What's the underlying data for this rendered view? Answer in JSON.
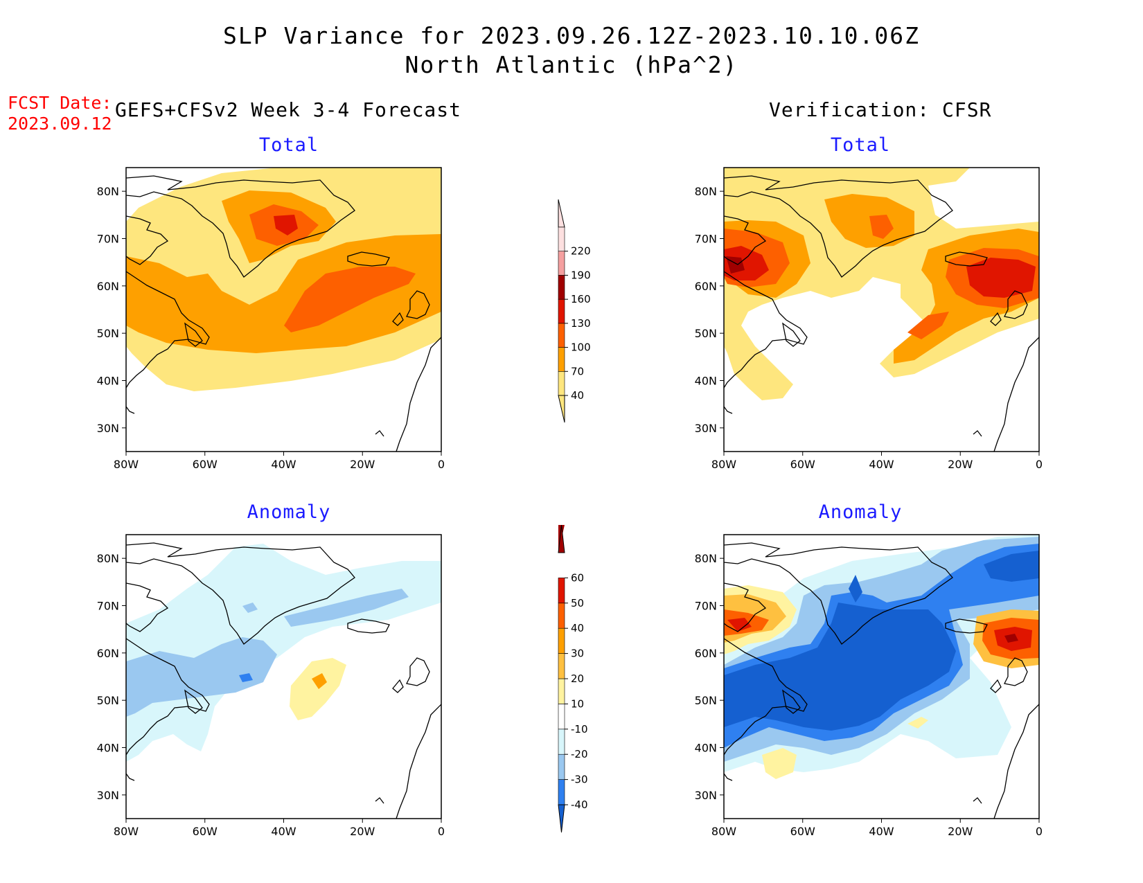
{
  "title": {
    "line1": "SLP Variance for 2023.09.26.12Z-2023.10.10.06Z",
    "line2": "North Atlantic (hPa^2)"
  },
  "forecast_date": {
    "label": "FCST Date:",
    "value": "2023.09.12"
  },
  "left_header": "GEFS+CFSv2 Week 3-4 Forecast",
  "right_header": "Verification: CFSR",
  "panels": {
    "fcst_total": {
      "subtitle": "Total"
    },
    "ver_total": {
      "subtitle": "Total"
    },
    "fcst_anom": {
      "subtitle": "Anomaly"
    },
    "ver_anom": {
      "subtitle": "Anomaly"
    }
  },
  "axes": {
    "lon_ticks": [
      "80W",
      "60W",
      "40W",
      "20W",
      "0"
    ],
    "lat_ticks": [
      "30N",
      "40N",
      "50N",
      "60N",
      "70N",
      "80N"
    ],
    "lon_range": [
      -80,
      0
    ],
    "lat_range": [
      25,
      85
    ]
  },
  "colorbars": {
    "total": {
      "labels": [
        "40",
        "70",
        "100",
        "130",
        "160",
        "190",
        "220"
      ],
      "colors": [
        "#fee67e",
        "#fea000",
        "#fd6000",
        "#e01500",
        "#a00000",
        "#f5a0a0",
        "#fde0e0"
      ]
    },
    "anomaly": {
      "labels": [
        "-40",
        "-30",
        "-20",
        "-10",
        "10",
        "20",
        "30",
        "40",
        "50",
        "60"
      ],
      "colors": [
        "#1560d0",
        "#2f80f0",
        "#9ac8f0",
        "#d8f6fb",
        "#ffffff",
        "#fff3a0",
        "#fec040",
        "#fea000",
        "#fd6000",
        "#e01500",
        "#a00000"
      ]
    }
  },
  "colors": {
    "land_outline": "#000000",
    "title_red": "#ff0000",
    "subtitle_blue": "#1a1aff"
  }
}
